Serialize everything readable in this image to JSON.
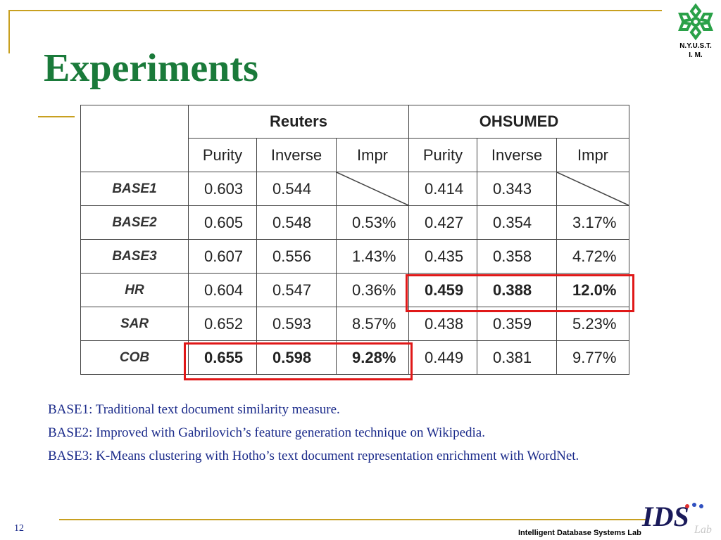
{
  "slide": {
    "title": "Experiments",
    "page_number": "12",
    "footer": "Intelligent Database Systems Lab"
  },
  "logo": {
    "line1": "N.Y.U.S.T.",
    "line2": "I. M.",
    "color": "#2aa148"
  },
  "lab_logo": {
    "letters": "IDS",
    "suffix": "Lab"
  },
  "table": {
    "groups": [
      "Reuters",
      "OHSUMED"
    ],
    "columns": [
      "Purity",
      "Inverse",
      "Impr",
      "Purity",
      "Inverse",
      "Impr"
    ],
    "rows": [
      {
        "label": "BASE1",
        "values": [
          "0.603",
          "0.544",
          "",
          "0.414",
          "0.343",
          ""
        ]
      },
      {
        "label": "BASE2",
        "values": [
          "0.605",
          "0.548",
          "0.53%",
          "0.427",
          "0.354",
          "3.17%"
        ]
      },
      {
        "label": "BASE3",
        "values": [
          "0.607",
          "0.556",
          "1.43%",
          "0.435",
          "0.358",
          "4.72%"
        ]
      },
      {
        "label": "HR",
        "values": [
          "0.604",
          "0.547",
          "0.36%",
          "0.459",
          "0.388",
          "12.0%"
        ]
      },
      {
        "label": "SAR",
        "values": [
          "0.652",
          "0.593",
          "8.57%",
          "0.438",
          "0.359",
          "5.23%"
        ]
      },
      {
        "label": "COB",
        "values": [
          "0.655",
          "0.598",
          "9.28%",
          "0.449",
          "0.381",
          "9.77%"
        ]
      }
    ],
    "highlight_color": "#e01818"
  },
  "notes": [
    "BASE1: Traditional text document similarity measure.",
    "BASE2: Improved with Gabrilovich’s feature generation technique on Wikipedia.",
    "BASE3: K-Means clustering with Hotho’s text document representation enrichment with WordNet."
  ],
  "colors": {
    "title": "#1a7a3a",
    "accent_line": "#c8a020",
    "body_text": "#1a2a8a"
  }
}
